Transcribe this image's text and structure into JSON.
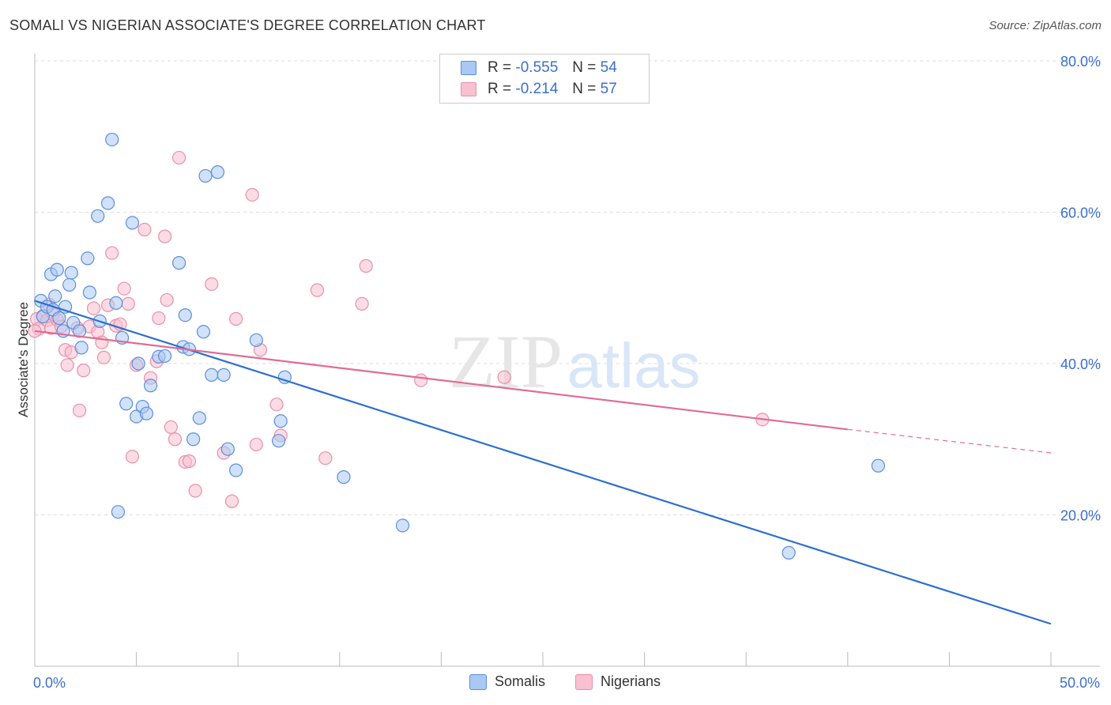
{
  "header": {
    "title": "SOMALI VS NIGERIAN ASSOCIATE'S DEGREE CORRELATION CHART",
    "source": "Source: ZipAtlas.com"
  },
  "watermark": {
    "zip": "ZIP",
    "atlas": "atlas"
  },
  "legend": {
    "somali": {
      "r_label": "R =",
      "r_value": "-0.555",
      "n_label": "N =",
      "n_value": "54"
    },
    "nigerian": {
      "r_label": "R =",
      "r_value": "-0.214",
      "n_label": "N =",
      "n_value": "57"
    }
  },
  "bottom_legend": {
    "somalis": "Somalis",
    "nigerians": "Nigerians"
  },
  "colors": {
    "somali_fill": "#a9c8f4",
    "somali_stroke": "#5b8fd9",
    "somali_line": "#2d6fcf",
    "nigerian_fill": "#f8c0d0",
    "nigerian_stroke": "#e890ab",
    "nigerian_line": "#e06b95",
    "axis_label": "#3a6fcf",
    "grid": "#dddddd"
  },
  "chart_data": {
    "type": "scatter",
    "title": "SOMALI VS NIGERIAN ASSOCIATE'S DEGREE CORRELATION CHART",
    "xlabel": "",
    "ylabel": "Associate's Degree",
    "xlim": [
      0,
      50
    ],
    "ylim": [
      0,
      82
    ],
    "x_tick_labels": [
      {
        "value": 0,
        "label": "0.0%"
      },
      {
        "value": 50,
        "label": "50.0%"
      }
    ],
    "y_tick_labels": [
      {
        "value": 20,
        "label": "20.0%"
      },
      {
        "value": 40,
        "label": "40.0%"
      },
      {
        "value": 60,
        "label": "60.0%"
      },
      {
        "value": 80,
        "label": "80.0%"
      }
    ],
    "grid": "horizontal dashed",
    "legend_position": "top-center",
    "series": [
      {
        "name": "Somalis",
        "points": [
          [
            0.3,
            48.3
          ],
          [
            0.4,
            46.2
          ],
          [
            0.6,
            47.5
          ],
          [
            0.8,
            51.8
          ],
          [
            0.9,
            47.1
          ],
          [
            1.0,
            48.9
          ],
          [
            1.1,
            52.4
          ],
          [
            1.2,
            46.0
          ],
          [
            1.4,
            44.3
          ],
          [
            1.5,
            47.5
          ],
          [
            1.7,
            50.4
          ],
          [
            1.8,
            52.0
          ],
          [
            1.9,
            45.4
          ],
          [
            2.2,
            44.3
          ],
          [
            2.3,
            42.1
          ],
          [
            2.6,
            53.9
          ],
          [
            2.7,
            49.4
          ],
          [
            3.1,
            59.5
          ],
          [
            3.2,
            45.6
          ],
          [
            3.6,
            61.2
          ],
          [
            3.8,
            69.6
          ],
          [
            4.0,
            48.0
          ],
          [
            4.1,
            20.4
          ],
          [
            4.3,
            43.4
          ],
          [
            4.5,
            34.7
          ],
          [
            4.8,
            58.6
          ],
          [
            5.0,
            33.0
          ],
          [
            5.1,
            40.0
          ],
          [
            5.3,
            34.3
          ],
          [
            5.5,
            33.4
          ],
          [
            5.7,
            37.1
          ],
          [
            6.1,
            40.9
          ],
          [
            6.4,
            41.0
          ],
          [
            7.1,
            53.3
          ],
          [
            7.3,
            42.2
          ],
          [
            7.4,
            46.4
          ],
          [
            7.6,
            41.9
          ],
          [
            7.8,
            30.0
          ],
          [
            8.1,
            32.8
          ],
          [
            8.3,
            44.2
          ],
          [
            8.4,
            64.8
          ],
          [
            8.7,
            38.5
          ],
          [
            9.0,
            65.3
          ],
          [
            9.3,
            38.5
          ],
          [
            9.5,
            28.7
          ],
          [
            9.9,
            25.9
          ],
          [
            10.9,
            43.1
          ],
          [
            12.0,
            29.8
          ],
          [
            12.1,
            32.4
          ],
          [
            12.3,
            38.2
          ],
          [
            15.2,
            25.0
          ],
          [
            18.1,
            18.6
          ],
          [
            37.1,
            15.0
          ],
          [
            41.5,
            26.5
          ]
        ]
      },
      {
        "name": "Nigerians",
        "points": [
          [
            0.1,
            45.9
          ],
          [
            0.2,
            44.6
          ],
          [
            0.4,
            46.3
          ],
          [
            0.6,
            45.7
          ],
          [
            0.7,
            47.8
          ],
          [
            0.8,
            44.7
          ],
          [
            0.9,
            46.5
          ],
          [
            1.1,
            45.8
          ],
          [
            1.3,
            44.9
          ],
          [
            1.5,
            41.8
          ],
          [
            1.6,
            39.8
          ],
          [
            1.8,
            41.5
          ],
          [
            2.1,
            44.7
          ],
          [
            2.2,
            33.8
          ],
          [
            2.4,
            39.1
          ],
          [
            2.7,
            44.9
          ],
          [
            2.9,
            47.3
          ],
          [
            3.1,
            44.2
          ],
          [
            3.3,
            42.8
          ],
          [
            3.4,
            40.8
          ],
          [
            3.6,
            47.7
          ],
          [
            3.8,
            54.6
          ],
          [
            4.0,
            45.0
          ],
          [
            4.2,
            45.2
          ],
          [
            4.4,
            49.9
          ],
          [
            4.6,
            47.9
          ],
          [
            4.8,
            27.7
          ],
          [
            5.0,
            39.8
          ],
          [
            5.4,
            57.7
          ],
          [
            5.7,
            38.1
          ],
          [
            6.0,
            40.3
          ],
          [
            6.1,
            46.0
          ],
          [
            6.4,
            56.8
          ],
          [
            6.5,
            48.4
          ],
          [
            6.7,
            31.6
          ],
          [
            6.9,
            30.0
          ],
          [
            7.1,
            67.2
          ],
          [
            7.4,
            27.0
          ],
          [
            7.6,
            27.1
          ],
          [
            7.9,
            23.2
          ],
          [
            8.7,
            50.5
          ],
          [
            9.3,
            28.2
          ],
          [
            9.7,
            21.8
          ],
          [
            9.9,
            45.9
          ],
          [
            10.7,
            62.3
          ],
          [
            10.9,
            29.3
          ],
          [
            11.1,
            41.8
          ],
          [
            11.9,
            34.6
          ],
          [
            12.1,
            30.5
          ],
          [
            13.9,
            49.7
          ],
          [
            14.3,
            27.5
          ],
          [
            16.1,
            47.9
          ],
          [
            16.3,
            52.9
          ],
          [
            19.0,
            37.8
          ],
          [
            23.1,
            38.2
          ],
          [
            35.8,
            32.6
          ],
          [
            0.0,
            44.3
          ]
        ]
      }
    ],
    "trend_lines": [
      {
        "series": "Somalis",
        "start": [
          0,
          48.3
        ],
        "end": [
          50,
          5.6
        ]
      },
      {
        "series": "Nigerians",
        "start": [
          0,
          44.3
        ],
        "end": [
          40,
          31.3
        ],
        "dashed_extension_to": [
          50,
          28.2
        ]
      }
    ]
  }
}
